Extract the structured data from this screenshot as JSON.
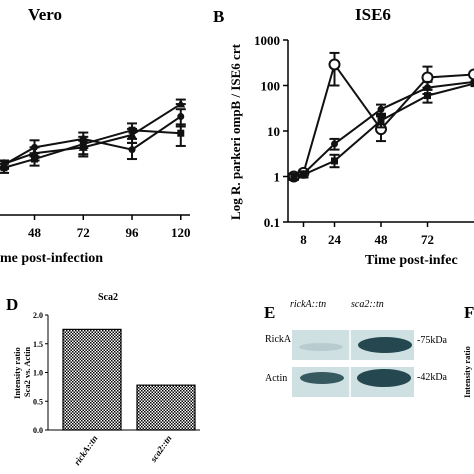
{
  "chart_data": [
    {
      "type": "line",
      "title": "Vero",
      "xlabel": "me post-infection",
      "ylabel": "",
      "x": [
        48,
        72,
        96,
        120
      ],
      "x_ticks": [
        "48",
        "72",
        "96",
        "120"
      ],
      "x_range": [
        31,
        127
      ],
      "y_range_log10": [
        -1,
        3
      ],
      "series": [
        {
          "marker": "circle",
          "points": [
            [
              33,
              0.95
            ],
            [
              48,
              2.5
            ],
            [
              72,
              4.0
            ],
            [
              96,
              2.2
            ],
            [
              120,
              14.0
            ]
          ],
          "err": [
            [
              0.2,
              0.2
            ],
            [
              1.2,
              1.0
            ],
            [
              1.7,
              1.6
            ],
            [
              1.0,
              0.9
            ],
            [
              7,
              6
            ]
          ]
        },
        {
          "marker": "square",
          "points": [
            [
              33,
              0.8
            ],
            [
              48,
              1.3
            ],
            [
              72,
              3.0
            ],
            [
              96,
              6.5
            ],
            [
              120,
              5.5
            ]
          ],
          "err": [
            [
              0.2,
              0.2
            ],
            [
              0.5,
              0.4
            ],
            [
              1.5,
              1.3
            ],
            [
              3,
              2.5
            ],
            [
              3.5,
              2.8
            ]
          ]
        },
        {
          "marker": "triangle",
          "points": [
            [
              33,
              1.0
            ],
            [
              48,
              1.8
            ],
            [
              72,
              2.5
            ],
            [
              96,
              5.0
            ],
            [
              120,
              28.0
            ]
          ],
          "err": [
            [
              0.2,
              0.2
            ],
            [
              0.7,
              0.6
            ],
            [
              1.1,
              1.0
            ],
            [
              2,
              1.8
            ],
            [
              8,
              0
            ]
          ]
        }
      ]
    },
    {
      "type": "line",
      "panel": "B",
      "title": "ISE6",
      "xlabel": "Time post-infec",
      "ylabel": "Log R. parkeri ompB / ISE6 crt",
      "x": [
        3,
        8,
        24,
        48,
        72
      ],
      "x_ticks": [
        "8",
        "24",
        "48",
        "72"
      ],
      "x_range": [
        0,
        96
      ],
      "y_range_log10": [
        -1,
        3
      ],
      "y_ticks": [
        "0.1",
        "1",
        "10",
        "100",
        "1000"
      ],
      "series": [
        {
          "marker": "open-circle",
          "points": [
            [
              3,
              1.0
            ],
            [
              8,
              1.2
            ],
            [
              24,
              290
            ],
            [
              48,
              11
            ],
            [
              72,
              150
            ],
            [
              96,
              175
            ]
          ],
          "err": [
            [
              0.15,
              0.15
            ],
            [
              0.2,
              0.2
            ],
            [
              230,
              190
            ],
            [
              10,
              5
            ],
            [
              110,
              60
            ],
            [
              0,
              0
            ]
          ]
        },
        {
          "marker": "circle",
          "points": [
            [
              3,
              1.0
            ],
            [
              8,
              1.15
            ],
            [
              24,
              5.2
            ],
            [
              48,
              30
            ],
            [
              72,
              90
            ],
            [
              96,
              120
            ]
          ],
          "err": [
            [
              0.15,
              0.15
            ],
            [
              0.15,
              0.15
            ],
            [
              1.5,
              1.3
            ],
            [
              8,
              7
            ],
            [
              30,
              25
            ],
            [
              0,
              0
            ]
          ]
        },
        {
          "marker": "square",
          "points": [
            [
              3,
              1.0
            ],
            [
              8,
              1.1
            ],
            [
              24,
              2.2
            ],
            [
              48,
              17
            ],
            [
              72,
              60
            ],
            [
              96,
              110
            ]
          ],
          "err": [
            [
              0.15,
              0.15
            ],
            [
              0.15,
              0.15
            ],
            [
              0.8,
              0.6
            ],
            [
              7,
              5
            ],
            [
              20,
              18
            ],
            [
              0,
              0
            ]
          ]
        }
      ]
    },
    {
      "type": "bar",
      "panel": "D",
      "title": "Sca2",
      "ylabel": "Intensity ratio Sca2 vs. Actin",
      "categories": [
        "rickA::tn",
        "sca2::tn"
      ],
      "values": [
        1.75,
        0.78
      ],
      "ylim": [
        0,
        2.0
      ],
      "y_ticks": [
        "0.0",
        "0.5",
        "1.0",
        "1.5",
        "2.0"
      ]
    }
  ],
  "panel_e": {
    "letter": "E",
    "col_labels": [
      "rickA::tn",
      "sca2::tn"
    ],
    "rows": [
      {
        "label": "RickA",
        "size": "-75kDa"
      },
      {
        "label": "Actin",
        "size": "-42kDa"
      }
    ],
    "lane_intensity": [
      [
        0.12,
        0.95
      ],
      [
        0.85,
        0.95
      ]
    ]
  },
  "panel_f": {
    "letter": "F",
    "ylabel_fragment": "Intensity ratio"
  },
  "colors": {
    "ink": "#111111",
    "gel_bg": "#cfe0e2",
    "band": "#1b3f48"
  }
}
